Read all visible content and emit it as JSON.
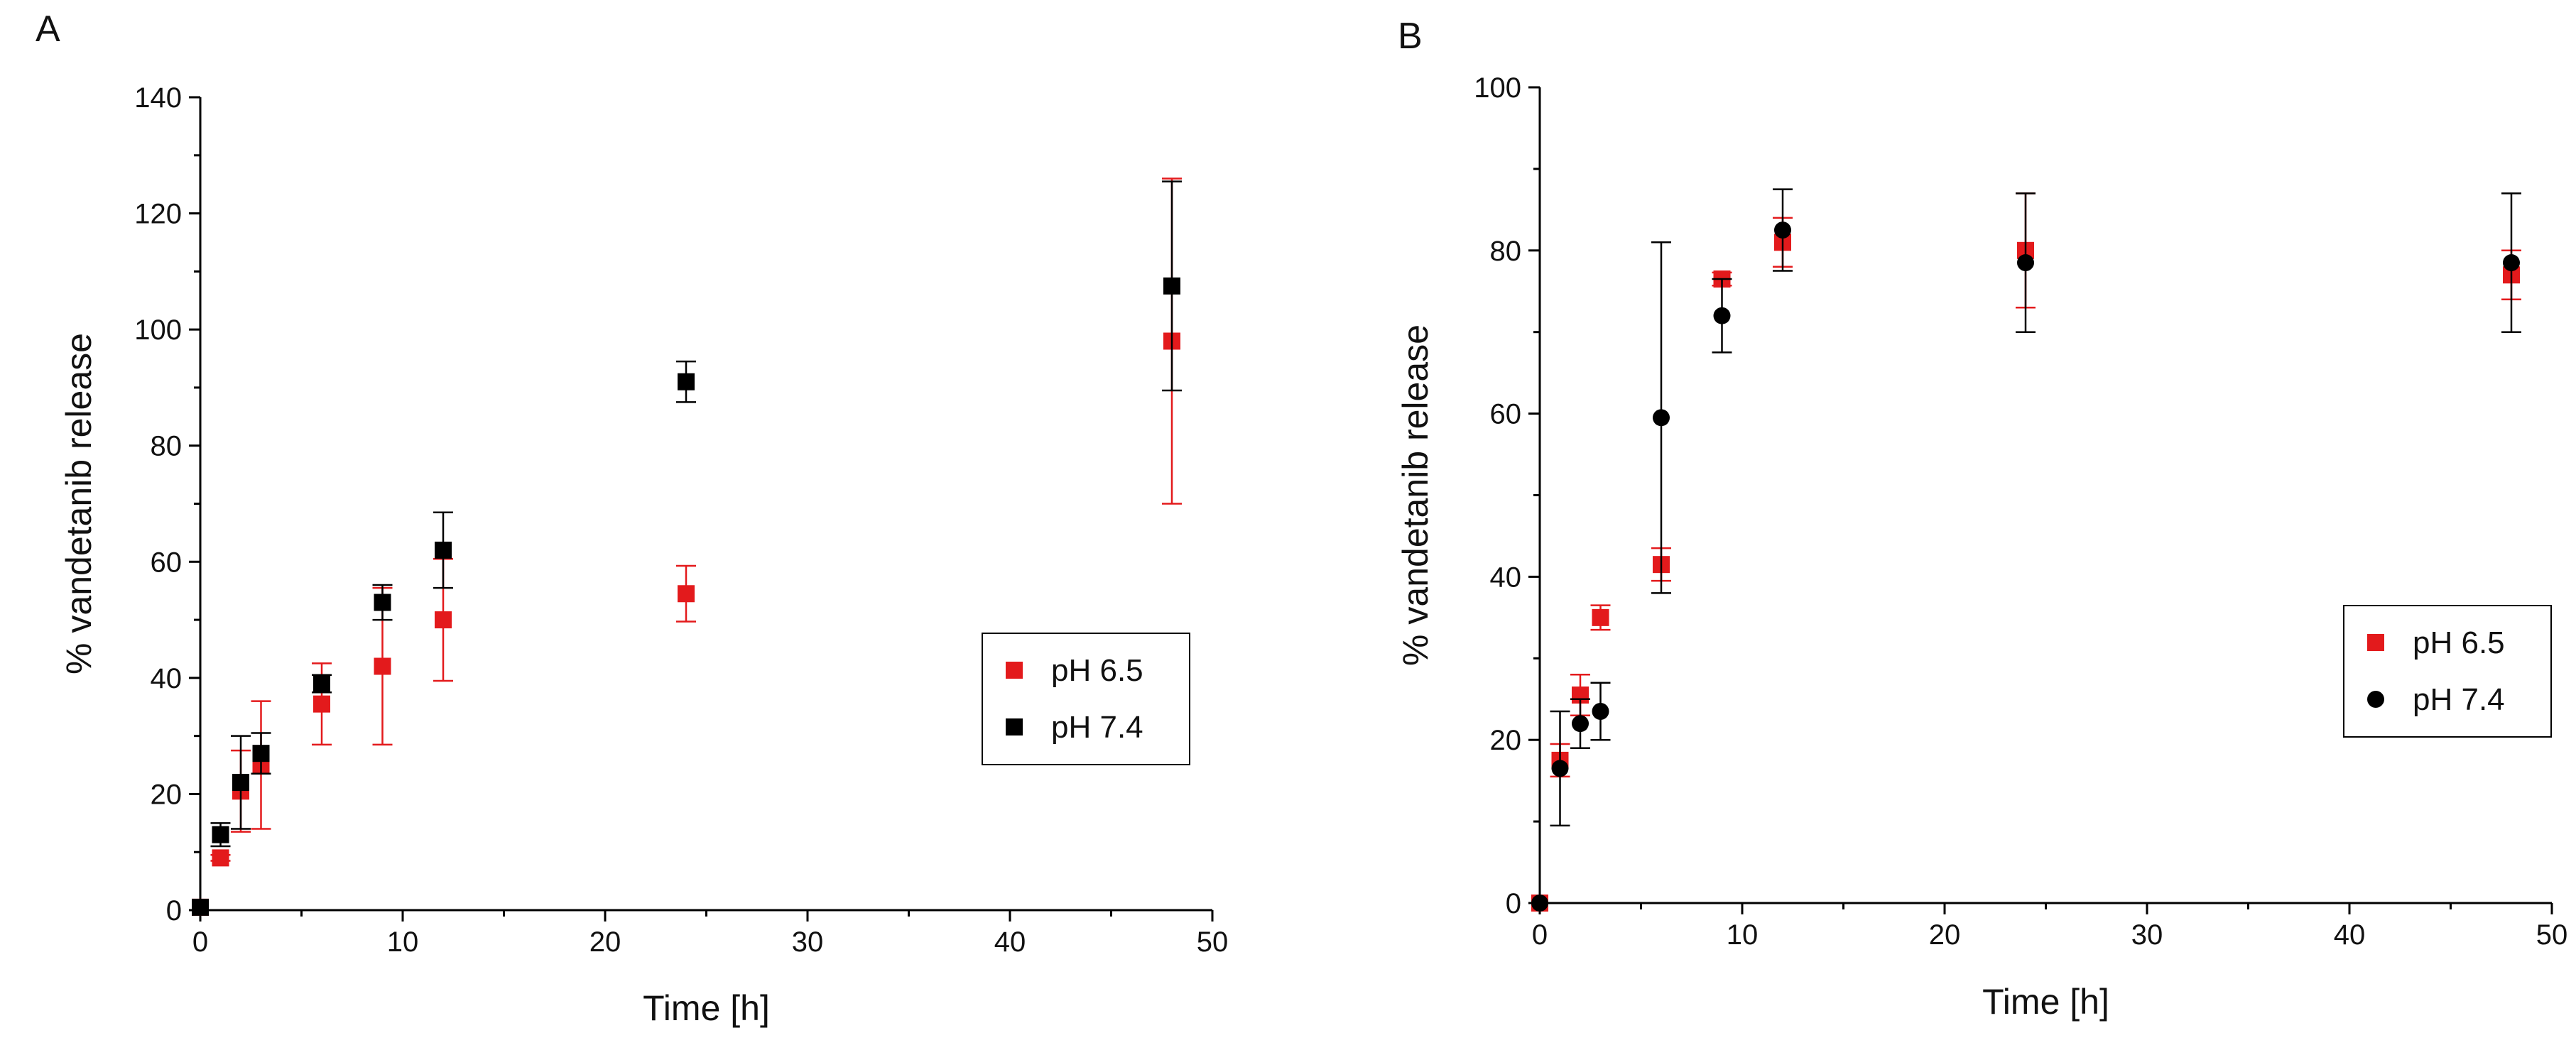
{
  "chart_data": [
    {
      "type": "scatter",
      "panel_label": "A",
      "xlabel": "Time [h]",
      "ylabel": "% vandetanib release",
      "xlim": [
        0,
        50
      ],
      "ylim": [
        0,
        140
      ],
      "xticks": [
        "0",
        "10",
        "20",
        "30",
        "40",
        "50"
      ],
      "yticks": [
        "0",
        "20",
        "40",
        "60",
        "80",
        "100",
        "120",
        "140"
      ],
      "legend_position": "right-middle",
      "series": [
        {
          "name": "pH 6.5",
          "color": "#e31a1c",
          "marker": "square",
          "x": [
            0,
            1,
            2,
            3,
            6,
            9,
            12,
            24,
            48
          ],
          "y": [
            0.5,
            9,
            20.5,
            25,
            35.5,
            42,
            50,
            54.5,
            98
          ],
          "err": [
            0,
            0.5,
            7,
            11,
            7,
            13.5,
            10.5,
            4.8,
            28
          ]
        },
        {
          "name": "pH 7.4",
          "color": "#000000",
          "marker": "square",
          "x": [
            0,
            1,
            2,
            3,
            6,
            9,
            12,
            24,
            48
          ],
          "y": [
            0.5,
            13,
            22,
            27,
            39,
            53,
            62,
            91,
            107.5
          ],
          "err": [
            0,
            2,
            8,
            3.5,
            1.5,
            3,
            6.5,
            3.5,
            18
          ]
        }
      ]
    },
    {
      "type": "scatter",
      "panel_label": "B",
      "xlabel": "Time [h]",
      "ylabel": "% vandetanib release",
      "xlim": [
        0,
        50
      ],
      "ylim": [
        0,
        100
      ],
      "xticks": [
        "0",
        "10",
        "20",
        "30",
        "40",
        "50"
      ],
      "yticks": [
        "0",
        "20",
        "40",
        "60",
        "80",
        "100"
      ],
      "legend_position": "right-middle",
      "series": [
        {
          "name": "pH 6.5",
          "color": "#e31a1c",
          "marker": "square",
          "x": [
            0,
            1,
            2,
            3,
            6,
            9,
            12,
            24,
            48
          ],
          "y": [
            0,
            17.5,
            25.5,
            35,
            41.5,
            76.5,
            81,
            80,
            77
          ],
          "err": [
            0,
            2,
            2.5,
            1.5,
            2,
            0.8,
            3,
            7,
            3
          ]
        },
        {
          "name": "pH 7.4",
          "color": "#000000",
          "marker": "circle",
          "x": [
            0,
            1,
            2,
            3,
            6,
            9,
            12,
            24,
            48
          ],
          "y": [
            0,
            16.5,
            22,
            23.5,
            59.5,
            72,
            82.5,
            78.5,
            78.5
          ],
          "err": [
            0,
            7,
            3,
            3.5,
            21.5,
            4.5,
            5,
            8.5,
            8.5
          ]
        }
      ]
    }
  ]
}
